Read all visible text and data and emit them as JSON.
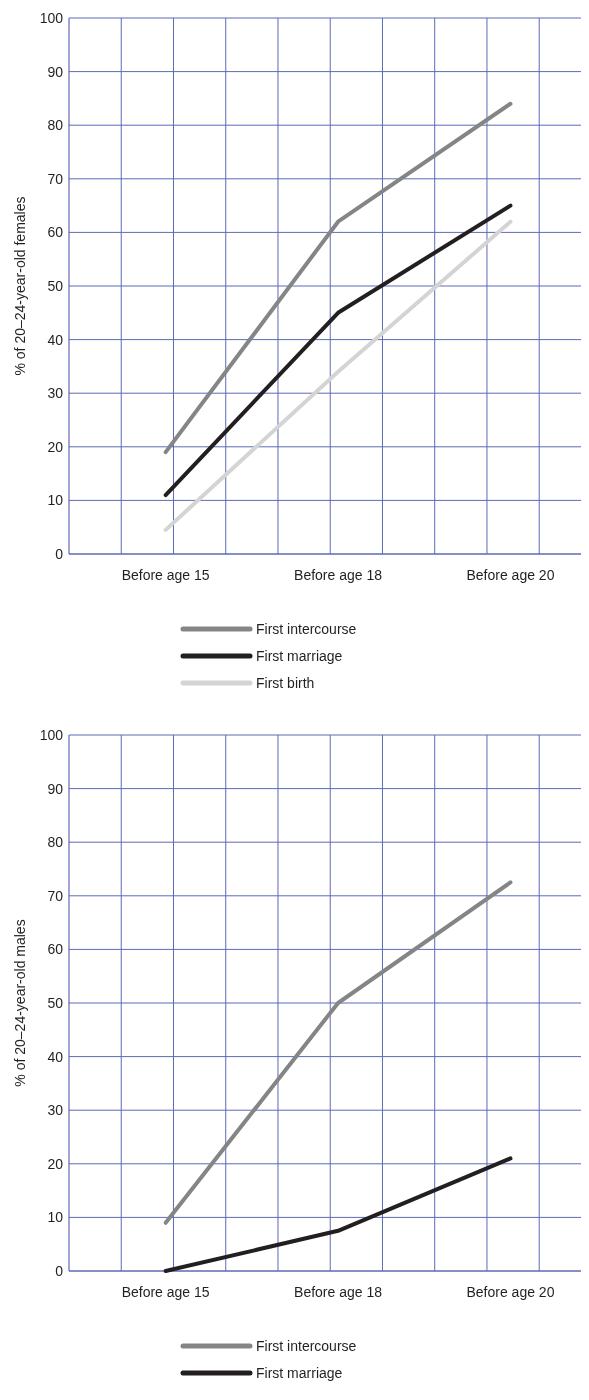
{
  "chart_data": [
    {
      "type": "line",
      "ylabel": "% of 20–24-year-old females",
      "categories": [
        "Before age 15",
        "Before age 18",
        "Before age 20"
      ],
      "ylim": [
        0,
        100
      ],
      "yticks": [
        0,
        10,
        20,
        30,
        40,
        50,
        60,
        70,
        80,
        90,
        100
      ],
      "grid": true,
      "legend": "bottom",
      "marker": "none",
      "line_style": "solid",
      "series": [
        {
          "name": "First intercourse",
          "color": "#858585",
          "values": [
            19,
            62,
            84
          ]
        },
        {
          "name": "First marriage",
          "color": "#231f20",
          "values": [
            11,
            45,
            65
          ]
        },
        {
          "name": "First birth",
          "color": "#d4d4d4",
          "values": [
            4.5,
            34,
            62
          ]
        }
      ]
    },
    {
      "type": "line",
      "ylabel": "% of 20–24-year-old males",
      "categories": [
        "Before age 15",
        "Before age 18",
        "Before age 20"
      ],
      "ylim": [
        0,
        100
      ],
      "yticks": [
        0,
        10,
        20,
        30,
        40,
        50,
        60,
        70,
        80,
        90,
        100
      ],
      "grid": true,
      "legend": "bottom",
      "marker": "none",
      "line_style": "solid",
      "series": [
        {
          "name": "First intercourse",
          "color": "#858585",
          "values": [
            9,
            50,
            72.5
          ]
        },
        {
          "name": "First marriage",
          "color": "#231f20",
          "values": [
            0,
            7.5,
            21
          ]
        }
      ]
    }
  ]
}
